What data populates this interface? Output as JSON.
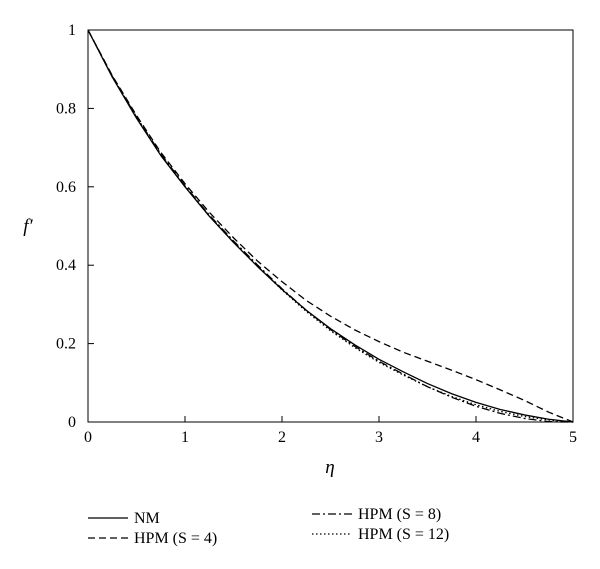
{
  "chart_data": {
    "type": "line",
    "xlabel": "η",
    "ylabel": "f′",
    "xlim": [
      0,
      5
    ],
    "ylim": [
      0,
      1
    ],
    "xticks": [
      "0",
      "1",
      "2",
      "3",
      "4",
      "5"
    ],
    "yticks": [
      "0",
      "0.2",
      "0.4",
      "0.6",
      "0.8",
      "1"
    ],
    "grid": false,
    "legend_position": "bottom",
    "series": [
      {
        "name": "NM",
        "style": "solid",
        "x": [
          0,
          0.25,
          0.5,
          0.75,
          1,
          1.25,
          1.5,
          1.75,
          2,
          2.25,
          2.5,
          2.75,
          3,
          3.25,
          3.5,
          3.75,
          4,
          4.25,
          4.5,
          4.75,
          5
        ],
        "y": [
          1,
          0.88,
          0.775,
          0.68,
          0.6,
          0.525,
          0.458,
          0.396,
          0.338,
          0.285,
          0.238,
          0.197,
          0.16,
          0.128,
          0.098,
          0.072,
          0.05,
          0.032,
          0.018,
          0.007,
          0
        ]
      },
      {
        "name": "HPM (S = 4)",
        "style": "dashed",
        "x": [
          0,
          0.25,
          0.5,
          0.75,
          1,
          1.25,
          1.5,
          1.75,
          2,
          2.25,
          2.5,
          2.75,
          3,
          3.25,
          3.5,
          3.75,
          4,
          4.25,
          4.5,
          4.75,
          5
        ],
        "y": [
          1,
          0.884,
          0.782,
          0.688,
          0.608,
          0.535,
          0.47,
          0.41,
          0.358,
          0.31,
          0.27,
          0.235,
          0.205,
          0.178,
          0.155,
          0.132,
          0.108,
          0.082,
          0.055,
          0.025,
          0
        ]
      },
      {
        "name": "HPM (S = 8)",
        "style": "dash-dot",
        "x": [
          0,
          0.25,
          0.5,
          0.75,
          1,
          1.25,
          1.5,
          1.75,
          2,
          2.25,
          2.5,
          2.75,
          3,
          3.25,
          3.5,
          3.75,
          4,
          4.25,
          4.5,
          4.75,
          4.9,
          5
        ],
        "y": [
          1,
          0.882,
          0.778,
          0.684,
          0.603,
          0.528,
          0.462,
          0.4,
          0.34,
          0.285,
          0.236,
          0.193,
          0.155,
          0.122,
          0.09,
          0.063,
          0.04,
          0.022,
          0.009,
          0.001,
          0,
          0
        ]
      },
      {
        "name": "HPM (S = 12)",
        "style": "dotted",
        "x": [
          0,
          0.25,
          0.5,
          0.75,
          1,
          1.25,
          1.5,
          1.75,
          2,
          2.25,
          2.5,
          2.75,
          3,
          3.25,
          3.5,
          3.75,
          4,
          4.25,
          4.5,
          4.75,
          5
        ],
        "y": [
          1,
          0.881,
          0.776,
          0.682,
          0.601,
          0.526,
          0.459,
          0.397,
          0.337,
          0.282,
          0.233,
          0.19,
          0.152,
          0.12,
          0.09,
          0.065,
          0.044,
          0.027,
          0.014,
          0.005,
          0
        ]
      }
    ]
  },
  "legend": [
    {
      "label": "NM",
      "style": "solid"
    },
    {
      "label": "HPM (S = 4)",
      "style": "dashed"
    },
    {
      "label": "HPM (S = 8)",
      "style": "dash-dot"
    },
    {
      "label": "HPM (S = 12)",
      "style": "dotted"
    }
  ]
}
